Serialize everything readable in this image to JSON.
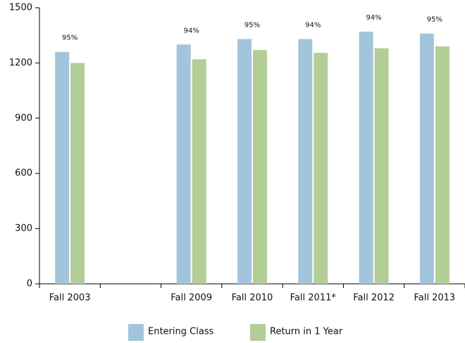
{
  "chart_data": {
    "type": "bar",
    "categories": [
      "Fall 2003",
      null,
      "Fall 2009",
      "Fall 2010",
      "Fall 2011*",
      "Fall 2012",
      "Fall 2013"
    ],
    "series": [
      {
        "name": "Entering Class",
        "color": "#a3c5db",
        "values": [
          1260,
          null,
          1300,
          1330,
          1330,
          1370,
          1360
        ]
      },
      {
        "name": "Return in 1 Year",
        "color": "#b3cd97",
        "values": [
          1200,
          null,
          1220,
          1270,
          1255,
          1280,
          1290
        ]
      }
    ],
    "annotations": [
      "95%",
      null,
      "94%",
      "95%",
      "94%",
      "94%",
      "95%"
    ],
    "ylim": [
      0,
      1500
    ],
    "yticks": [
      0,
      300,
      600,
      900,
      1200,
      1500
    ],
    "legend": "bottom"
  }
}
